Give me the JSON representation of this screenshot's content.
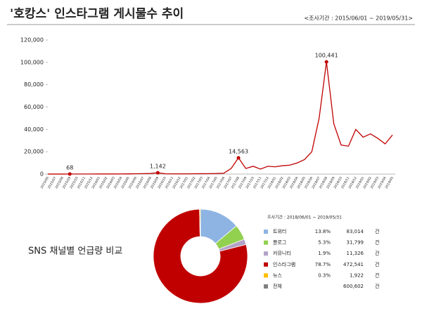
{
  "chart_data": [
    {
      "type": "line",
      "title": "'호캉스' 인스타그램 게시물수 추이",
      "subtitle": "<조사기간 : 2015/06/01 ~ 2019/05/31>",
      "categories": [
        "2015/06",
        "2015/07",
        "2015/08",
        "2015/09",
        "2015/10",
        "2015/11",
        "2015/12",
        "2016/01",
        "2016/02",
        "2016/03",
        "2016/04",
        "2016/05",
        "2016/06",
        "2016/07",
        "2016/08",
        "2016/09",
        "2016/10",
        "2016/11",
        "2016/12",
        "2017/01",
        "2017/02",
        "2017/03",
        "2017/04",
        "2017/05",
        "2017/06",
        "2017/07",
        "2017/08",
        "2017/09",
        "2017/10",
        "2017/11",
        "2017/12",
        "2018/01",
        "2018/02",
        "2018/03",
        "2018/04",
        "2018/05",
        "2018/06",
        "2018/07",
        "2018/08",
        "2018/09",
        "2018/10",
        "2018/11",
        "2018/12",
        "2019/01",
        "2019/02",
        "2019/03",
        "2019/04",
        "2019/05"
      ],
      "values": [
        30,
        40,
        50,
        68,
        80,
        90,
        100,
        110,
        120,
        130,
        150,
        200,
        300,
        400,
        600,
        1142,
        300,
        250,
        250,
        250,
        300,
        350,
        400,
        500,
        800,
        5000,
        14563,
        5000,
        7000,
        4500,
        7000,
        6500,
        7500,
        8000,
        10000,
        13000,
        20000,
        50000,
        100441,
        45000,
        26000,
        25000,
        40000,
        33000,
        36000,
        32000,
        27000,
        35000
      ],
      "value_labels": [
        null,
        null,
        null,
        "68",
        null,
        null,
        null,
        null,
        null,
        null,
        null,
        null,
        null,
        null,
        null,
        "1,142",
        null,
        null,
        null,
        null,
        null,
        null,
        null,
        null,
        null,
        null,
        "14,563",
        null,
        null,
        null,
        null,
        null,
        null,
        null,
        null,
        null,
        null,
        null,
        "100,441",
        null,
        null,
        null,
        null,
        null,
        null,
        null,
        null,
        null
      ],
      "color": "#c00000",
      "ylim": [
        0,
        120000
      ],
      "yticks": [
        0,
        {
          "value": 20000,
          "label": "20,000"
        },
        {
          "value": 40000,
          "label": "40,000"
        },
        {
          "value": 60000,
          "label": "60,000"
        },
        {
          "value": 80000,
          "label": "80,000"
        },
        {
          "value": 100000,
          "label": "100,000"
        },
        {
          "value": 120000,
          "label": "120,000"
        }
      ],
      "grid": false
    },
    {
      "type": "donut",
      "title": "SNS 채널별 언급량 비교",
      "subtitle": "조사기간 : 2018/06/01 ~ 2019/05/31",
      "categories": [
        "트위터",
        "블로그",
        "커뮤니티",
        "인스타그램",
        "뉴스"
      ],
      "values": [
        83014,
        31799,
        11326,
        472541,
        1922
      ],
      "value_labels": [
        "83,014",
        "31,799",
        "11,326",
        "472,541",
        "1,922"
      ],
      "shares": [
        13.8,
        5.3,
        1.9,
        78.7,
        0.3
      ],
      "share_labels": [
        "13.8%",
        "5.3%",
        "1.9%",
        "78.7%",
        "0.3%"
      ],
      "colors": [
        "#8eb4e3",
        "#92d050",
        "#b3a2c7",
        "#c00000",
        "#ffc000"
      ],
      "total": {
        "label": "전체",
        "value": 600602,
        "value_label": "600,602",
        "color": "#808080"
      },
      "unit": "건"
    }
  ]
}
